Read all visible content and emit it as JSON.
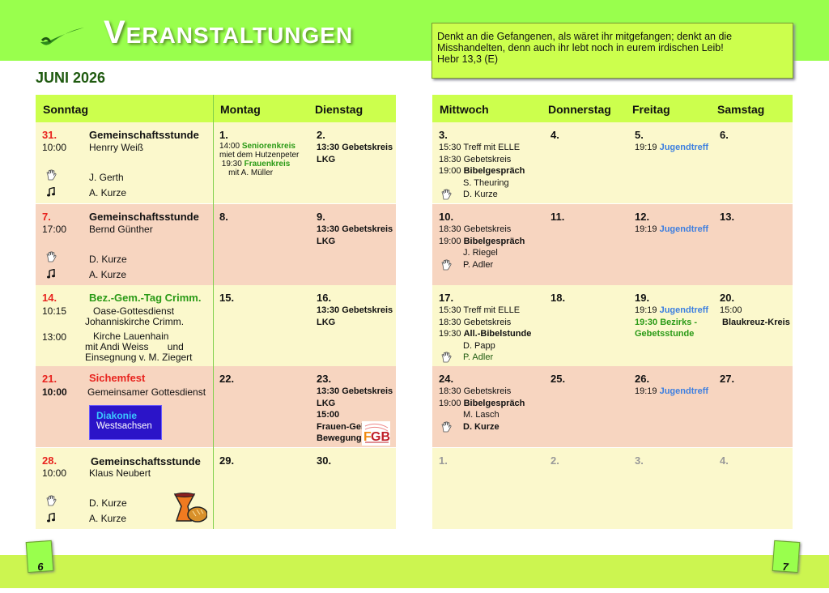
{
  "header": {
    "title": "Veranstaltungen",
    "month": "JUNI 2026",
    "verse": [
      "Denkt an die Gefangenen, als wäret ihr mitgefangen; denkt an die",
      "Misshandelten, denn auch ihr lebt noch in eurem irdischen Leib!",
      "Hebr 13,3 (E)"
    ]
  },
  "colors": {
    "top_bar": "#99ff4d",
    "header_row": "#ccff4d",
    "row_light": "#fbf8cc",
    "row_peach": "#f7d5c0",
    "red": "#e8231e",
    "green": "#2a9a16",
    "blue": "#3d7fe0"
  },
  "left_days": [
    "Sonntag",
    "Montag",
    "Dienstag"
  ],
  "right_days": [
    "Mittwoch",
    "Donnerstag",
    "Freitag",
    "Samstag"
  ],
  "sundays": [
    {
      "date": "31.",
      "title": "Gemeinschaftsstunde",
      "time": "10:00",
      "speaker": "Henrry Weiß",
      "leader": "J. Gerth",
      "music": "A. Kurze"
    },
    {
      "date": "7.",
      "title": "Gemeinschaftsstunde",
      "time": "17:00",
      "speaker": "Bernd Günther",
      "leader": "D. Kurze",
      "music": "A. Kurze"
    },
    {
      "date": "14.",
      "title": "Bez.-Gem.-Tag Crimm.",
      "time": "10:15",
      "l1": "Oase-Gottesdienst",
      "l2": "Johanniskirche Crimm.",
      "time2": "13:00",
      "l3": "Kirche Lauenhain",
      "l4": "mit Andi Weiss       und",
      "l5": "Einsegnung v. M. Ziegert"
    },
    {
      "date": "21.",
      "title": "Sichemfest",
      "time": "10:00",
      "l1": "Gemeinsamer Gottesdienst",
      "logo_a": "Diakonie",
      "logo_b": "Westsachsen"
    },
    {
      "date": "28.",
      "title": "Gemeinschaftsstunde",
      "time": "10:00",
      "speaker": "Klaus Neubert",
      "leader": "D. Kurze",
      "music": "A. Kurze",
      "image": "chalice-and-bread"
    }
  ],
  "weeks": [
    {
      "mon": {
        "date": "1.",
        "lines": [
          [
            {
              "t": "14:00 "
            },
            {
              "t": "Seniorenkreis",
              "c": "g"
            }
          ],
          [
            {
              "t": "miet dem Hutzenpeter"
            }
          ],
          [
            {
              "t": " 19:30 "
            },
            {
              "t": "Frauenkreis",
              "c": "g"
            }
          ],
          [
            {
              "t": "    mit A. Müller"
            }
          ]
        ]
      },
      "tue": {
        "date": "2.",
        "lines": [
          [
            {
              "t": "13:30 Gebetskreis",
              "c": "b"
            }
          ],
          [
            {
              "t": "LKG",
              "c": "b"
            }
          ]
        ]
      },
      "wed": {
        "date": "3.",
        "lines": [
          [
            {
              "t": "15:30 Treff mit ELLE"
            }
          ],
          [
            {
              "t": "18:30 Gebetskreis"
            }
          ],
          [
            {
              "t": "19:00 "
            },
            {
              "t": "Bibelgespräch",
              "c": "b"
            }
          ],
          [
            {
              "t": "S. Theuring",
              "role": "speaker"
            }
          ],
          [
            {
              "t": "D. Kurze",
              "role": "leader"
            }
          ]
        ]
      },
      "thu": {
        "date": "4.",
        "lines": []
      },
      "fri": {
        "date": "5.",
        "lines": [
          [
            {
              "t": "19:19 "
            },
            {
              "t": "Jugendtreff",
              "c": "bl"
            }
          ]
        ]
      },
      "sat": {
        "date": "6.",
        "lines": []
      }
    },
    {
      "mon": {
        "date": "8.",
        "lines": []
      },
      "tue": {
        "date": "9.",
        "lines": [
          [
            {
              "t": "13:30 Gebetskreis",
              "c": "b"
            }
          ],
          [
            {
              "t": "LKG",
              "c": "b"
            }
          ]
        ]
      },
      "wed": {
        "date": "10.",
        "lines": [
          [
            {
              "t": "18:30 Gebetskreis"
            }
          ],
          [
            {
              "t": "19:00 "
            },
            {
              "t": "Bibelgespräch",
              "c": "b"
            }
          ],
          [
            {
              "t": "J. Riegel",
              "role": "speaker"
            }
          ],
          [
            {
              "t": "P. Adler",
              "role": "leader"
            }
          ]
        ]
      },
      "thu": {
        "date": "11.",
        "lines": []
      },
      "fri": {
        "date": "12.",
        "lines": [
          [
            {
              "t": "19:19 "
            },
            {
              "t": "Jugendtreff",
              "c": "bl"
            }
          ]
        ]
      },
      "sat": {
        "date": "13.",
        "lines": []
      }
    },
    {
      "mon": {
        "date": "15.",
        "lines": []
      },
      "tue": {
        "date": "16.",
        "lines": [
          [
            {
              "t": "13:30 Gebetskreis",
              "c": "b"
            }
          ],
          [
            {
              "t": "LKG",
              "c": "b"
            }
          ]
        ]
      },
      "wed": {
        "date": "17.",
        "lines": [
          [
            {
              "t": "15:30 Treff mit ELLE"
            }
          ],
          [
            {
              "t": "18:30 Gebetskreis"
            }
          ],
          [
            {
              "t": "19:30 "
            },
            {
              "t": "All.-Bibelstunde",
              "c": "b"
            }
          ],
          [
            {
              "t": "D. Papp",
              "role": "speaker"
            }
          ],
          [
            {
              "t": "P. Adler",
              "role": "leader",
              "c": "dg"
            }
          ]
        ]
      },
      "thu": {
        "date": "18.",
        "lines": []
      },
      "fri": {
        "date": "19.",
        "lines": [
          [
            {
              "t": "19:19 "
            },
            {
              "t": "Jugendtreff",
              "c": "bl"
            }
          ],
          [
            {
              "t": "19:30 Bezirks -",
              "c": "g"
            }
          ],
          [
            {
              "t": "Gebetsstunde",
              "c": "g"
            }
          ]
        ]
      },
      "sat": {
        "date": "20.",
        "lines": [
          [
            {
              "t": "15:00"
            }
          ],
          [
            {
              "t": " Blaukreuz-Kreis",
              "c": "b"
            }
          ]
        ]
      }
    },
    {
      "mon": {
        "date": "22.",
        "lines": []
      },
      "tue": {
        "date": "23.",
        "lines": [
          [
            {
              "t": "13:30 Gebetskreis",
              "c": "b"
            }
          ],
          [
            {
              "t": "LKG",
              "c": "b"
            }
          ],
          [
            {
              "t": "15:00",
              "c": "b"
            }
          ],
          [
            {
              "t": "Frauen-Gebets-",
              "c": "b"
            }
          ],
          [
            {
              "t": "Bewegung",
              "c": "b"
            }
          ]
        ],
        "logo": "FGB"
      },
      "wed": {
        "date": "24.",
        "lines": [
          [
            {
              "t": "18:30 Gebetskreis"
            }
          ],
          [
            {
              "t": "19:00 "
            },
            {
              "t": "Bibelgespräch",
              "c": "b"
            }
          ],
          [
            {
              "t": "M. Lasch",
              "role": "speaker"
            }
          ],
          [
            {
              "t": "D. Kurze",
              "role": "leader",
              "c": "b"
            }
          ]
        ]
      },
      "thu": {
        "date": "25.",
        "lines": []
      },
      "fri": {
        "date": "26.",
        "lines": [
          [
            {
              "t": "19:19 "
            },
            {
              "t": "Jugendtreff",
              "c": "bl"
            }
          ]
        ]
      },
      "sat": {
        "date": "27.",
        "lines": []
      }
    },
    {
      "mon": {
        "date": "29.",
        "lines": []
      },
      "tue": {
        "date": "30.",
        "lines": []
      },
      "wed": {
        "date": "1.",
        "lines": [],
        "muted": true
      },
      "thu": {
        "date": "2.",
        "lines": [],
        "muted": true
      },
      "fri": {
        "date": "3.",
        "lines": [],
        "muted": true
      },
      "sat": {
        "date": "4.",
        "lines": [],
        "muted": true
      }
    }
  ],
  "pages": {
    "left": "6",
    "right": "7"
  }
}
